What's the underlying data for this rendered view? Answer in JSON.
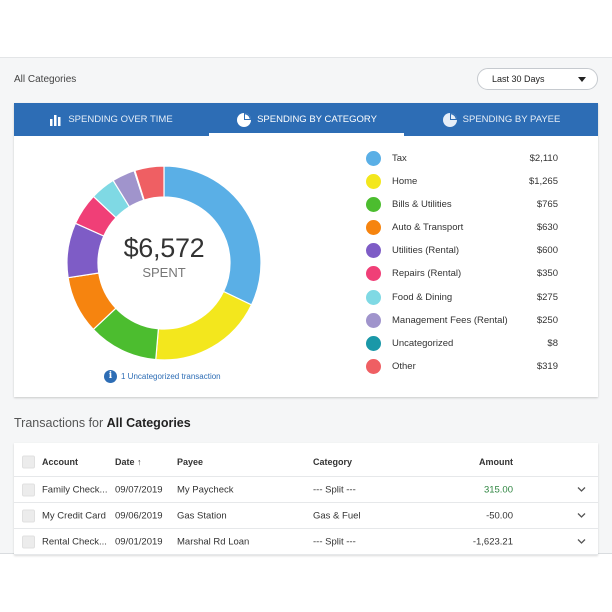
{
  "header": {
    "filter_label": "All Categories",
    "period": "Last 30 Days"
  },
  "tabs": [
    {
      "label": "SPENDING OVER TIME",
      "icon": "bar-chart-icon",
      "active": false
    },
    {
      "label": "SPENDING BY CATEGORY",
      "icon": "pie-chart-icon",
      "active": true
    },
    {
      "label": "SPENDING BY PAYEE",
      "icon": "pie-chart-icon",
      "active": false
    }
  ],
  "summary": {
    "total": "$6,572",
    "total_label": "SPENT",
    "uncategorized_note": "1 Uncategorized transaction"
  },
  "categories": [
    {
      "name": "Tax",
      "amount": "$2,110",
      "value": 2110,
      "color": "#5aafe6"
    },
    {
      "name": "Home",
      "amount": "$1,265",
      "value": 1265,
      "color": "#f3e71d"
    },
    {
      "name": "Bills & Utilities",
      "amount": "$765",
      "value": 765,
      "color": "#4cbd2f"
    },
    {
      "name": "Auto & Transport",
      "amount": "$630",
      "value": 630,
      "color": "#f6840f"
    },
    {
      "name": "Utilities (Rental)",
      "amount": "$600",
      "value": 600,
      "color": "#7e5cc6"
    },
    {
      "name": "Repairs (Rental)",
      "amount": "$350",
      "value": 350,
      "color": "#f03f77"
    },
    {
      "name": "Food & Dining",
      "amount": "$275",
      "value": 275,
      "color": "#7fd9e4"
    },
    {
      "name": "Management Fees (Rental)",
      "amount": "$250",
      "value": 250,
      "color": "#a094cc"
    },
    {
      "name": "Uncategorized",
      "amount": "$8",
      "value": 8,
      "color": "#1a98a8"
    },
    {
      "name": "Other",
      "amount": "$319",
      "value": 319,
      "color": "#ef5f63"
    }
  ],
  "transactions": {
    "title_prefix": "Transactions for",
    "title_bold": "All Categories",
    "columns": {
      "account": "Account",
      "date": "Date",
      "date_sort": "↑",
      "payee": "Payee",
      "category": "Category",
      "amount": "Amount"
    },
    "rows": [
      {
        "account": "Family Check...",
        "date": "09/07/2019",
        "payee": "My Paycheck",
        "category": "--- Split ---",
        "amount": "315.00",
        "positive": true
      },
      {
        "account": "My Credit Card",
        "date": "09/06/2019",
        "payee": "Gas Station",
        "category": "Gas & Fuel",
        "amount": "-50.00",
        "positive": false
      },
      {
        "account": "Rental Check...",
        "date": "09/01/2019",
        "payee": "Marshal Rd Loan",
        "category": "--- Split ---",
        "amount": "-1,623.21",
        "positive": false
      }
    ]
  }
}
